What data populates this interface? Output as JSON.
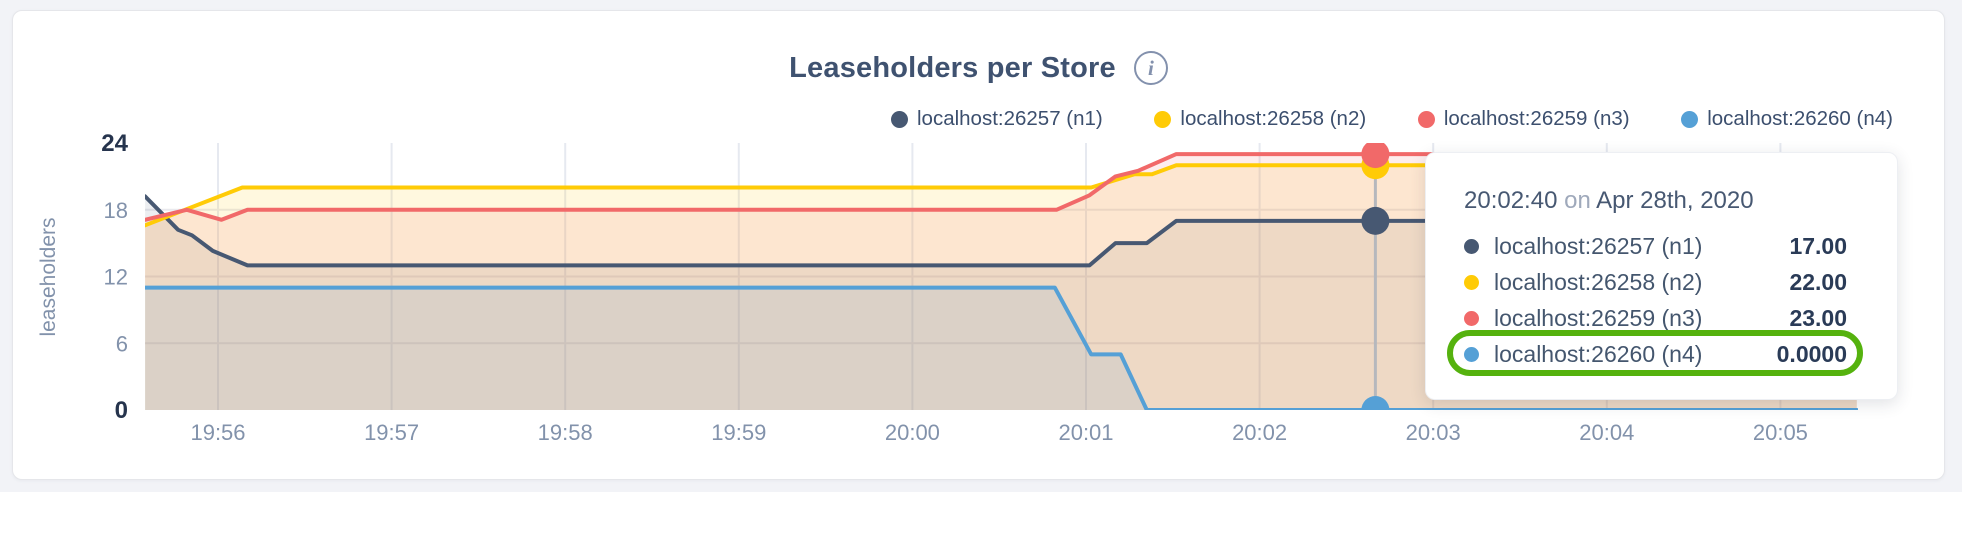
{
  "page": {
    "background": "#f2f3f7",
    "card_background": "#ffffff"
  },
  "header": {
    "title": "Leaseholders per Store",
    "info_glyph": "i"
  },
  "legend": [
    {
      "label": "localhost:26257 (n1)",
      "color": "#475872"
    },
    {
      "label": "localhost:26258 (n2)",
      "color": "#ffcb06"
    },
    {
      "label": "localhost:26259 (n3)",
      "color": "#f16969"
    },
    {
      "label": "localhost:26260 (n4)",
      "color": "#55a0d6"
    }
  ],
  "tooltip": {
    "time": "20:02:40",
    "conjunction": "on",
    "date": "Apr 28th, 2020",
    "rows": [
      {
        "label": "localhost:26257 (n1)",
        "value": "17.00",
        "color": "#475872",
        "highlighted": false
      },
      {
        "label": "localhost:26258 (n2)",
        "value": "22.00",
        "color": "#ffcb06",
        "highlighted": false
      },
      {
        "label": "localhost:26259 (n3)",
        "value": "23.00",
        "color": "#f16969",
        "highlighted": false
      },
      {
        "label": "localhost:26260 (n4)",
        "value": "0.0000",
        "color": "#55a0d6",
        "highlighted": true
      }
    ]
  },
  "annotation": {
    "shape": "green-rounded-highlight",
    "color": "#55b20e"
  },
  "chart_data": {
    "type": "area",
    "title": "Leaseholders per Store",
    "ylabel": "leaseholders",
    "ylim": [
      0,
      24
    ],
    "x_domain_minutes": [
      0.58,
      10.44
    ],
    "x_note": "t = minutes after 19:55:00; 1.0 = 19:56, 10.0 = 20:05",
    "grid": true,
    "xticks": [
      {
        "t": 1,
        "label": "19:56"
      },
      {
        "t": 2,
        "label": "19:57"
      },
      {
        "t": 3,
        "label": "19:58"
      },
      {
        "t": 4,
        "label": "19:59"
      },
      {
        "t": 5,
        "label": "20:00"
      },
      {
        "t": 6,
        "label": "20:01"
      },
      {
        "t": 7,
        "label": "20:02"
      },
      {
        "t": 8,
        "label": "20:03"
      },
      {
        "t": 9,
        "label": "20:04"
      },
      {
        "t": 10,
        "label": "20:05"
      }
    ],
    "yticks": [
      {
        "v": 0,
        "label": "0",
        "bold": true,
        "grid": false
      },
      {
        "v": 6,
        "label": "6",
        "bold": false,
        "grid": true
      },
      {
        "v": 12,
        "label": "12",
        "bold": false,
        "grid": true
      },
      {
        "v": 18,
        "label": "18",
        "bold": false,
        "grid": true
      },
      {
        "v": 24,
        "label": "24",
        "bold": true,
        "grid": false
      }
    ],
    "series": [
      {
        "name": "localhost:26257 (n1)",
        "color": "#475872",
        "fill_opacity": 0.1,
        "crosshair_value": 17,
        "points": [
          [
            0.58,
            19.2
          ],
          [
            0.77,
            16.2
          ],
          [
            0.85,
            15.7
          ],
          [
            0.97,
            14.3
          ],
          [
            1.17,
            13
          ],
          [
            6.02,
            13
          ],
          [
            6.17,
            15
          ],
          [
            6.35,
            15
          ],
          [
            6.52,
            17
          ],
          [
            10.44,
            17
          ]
        ]
      },
      {
        "name": "localhost:26258 (n2)",
        "color": "#ffcb06",
        "fill_opacity": 0.13,
        "crosshair_value": 22,
        "points": [
          [
            0.58,
            16.6
          ],
          [
            1.14,
            20
          ],
          [
            6.03,
            20
          ],
          [
            6.28,
            21.2
          ],
          [
            6.38,
            21.2
          ],
          [
            6.52,
            22
          ],
          [
            10.44,
            22
          ]
        ]
      },
      {
        "name": "localhost:26259 (n3)",
        "color": "#f16969",
        "fill_opacity": 0.12,
        "crosshair_value": 23,
        "points": [
          [
            0.58,
            17.1
          ],
          [
            0.82,
            18
          ],
          [
            1.02,
            17.1
          ],
          [
            1.17,
            18
          ],
          [
            5.83,
            18
          ],
          [
            6.02,
            19.3
          ],
          [
            6.17,
            21
          ],
          [
            6.3,
            21.5
          ],
          [
            6.52,
            23
          ],
          [
            10.44,
            23
          ]
        ]
      },
      {
        "name": "localhost:26260 (n4)",
        "color": "#55a0d6",
        "fill_opacity": 0.12,
        "crosshair_value": 0,
        "points": [
          [
            0.58,
            11
          ],
          [
            5.82,
            11
          ],
          [
            6.03,
            5
          ],
          [
            6.2,
            5
          ],
          [
            6.35,
            0
          ],
          [
            10.44,
            0
          ]
        ]
      }
    ],
    "crosshair": {
      "t": 7.667,
      "time_label": "20:02:40"
    },
    "legend_position": "top-right"
  }
}
